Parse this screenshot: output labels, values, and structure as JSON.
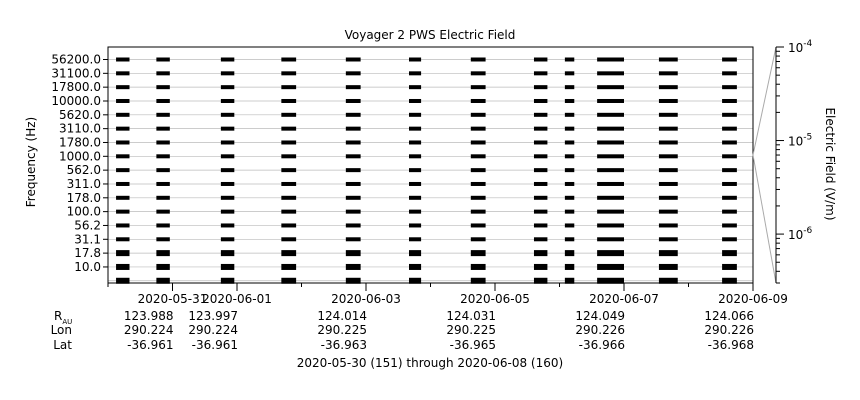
{
  "chart_data": {
    "type": "line",
    "title": "Voyager 2 PWS Electric Field",
    "ylabel": "Frequency (Hz)",
    "colorbar_label": "Electric Field (V/m)",
    "colorbar_ticks": [
      "10",
      "10",
      "10"
    ],
    "colorbar_exponents": [
      "-4",
      "-5",
      "-6"
    ],
    "colorbar_range": [
      3e-07,
      0.0001
    ],
    "colorbar_scale": "log",
    "frequency_channels": [
      "56200.0",
      "31100.0",
      "17800.0",
      "10000.0",
      "5620.0",
      "3110.0",
      "1780.0",
      "1000.0",
      "562.0",
      "311.0",
      "178.0",
      "100.0",
      "56.2",
      "31.1",
      "17.8",
      "10.0"
    ],
    "channel_count": 16,
    "grid": true,
    "x_ticks": [
      "2020-05-31",
      "2020-06-01",
      "2020-06-03",
      "2020-06-05",
      "2020-06-07",
      "2020-06-09"
    ],
    "xlim": [
      "2020-05-30",
      "2020-06-09"
    ],
    "x_caption": "2020-05-30 (151) through 2020-06-08 (160)",
    "ephemeris": {
      "row_labels": [
        "R",
        "Lon",
        "Lat"
      ],
      "r_subscript": "AU",
      "R": [
        "123.988",
        "123.997",
        "124.014",
        "124.031",
        "124.049",
        "124.066"
      ],
      "Lon": [
        "290.224",
        "290.224",
        "290.225",
        "290.225",
        "290.226",
        "290.226"
      ],
      "Lat": [
        "-36.961",
        "-36.961",
        "-36.963",
        "-36.965",
        "-36.966",
        "-36.968"
      ]
    },
    "data_blocks": [
      {
        "start": "2020-05-30T03:00",
        "end": "2020-05-30T08:00"
      },
      {
        "start": "2020-05-30T18:00",
        "end": "2020-05-30T23:00"
      },
      {
        "start": "2020-05-31T18:00",
        "end": "2020-05-31T23:00"
      },
      {
        "start": "2020-06-01T16:30",
        "end": "2020-06-01T22:00"
      },
      {
        "start": "2020-06-02T16:30",
        "end": "2020-06-02T22:00"
      },
      {
        "start": "2020-06-03T16:00",
        "end": "2020-06-03T20:30"
      },
      {
        "start": "2020-06-04T15:00",
        "end": "2020-06-04T20:30"
      },
      {
        "start": "2020-06-05T14:30",
        "end": "2020-06-05T19:30"
      },
      {
        "start": "2020-06-06T02:00",
        "end": "2020-06-06T05:30"
      },
      {
        "start": "2020-06-06T14:00",
        "end": "2020-06-07T00:00"
      },
      {
        "start": "2020-06-07T13:00",
        "end": "2020-06-07T20:00"
      },
      {
        "start": "2020-06-08T12:30",
        "end": "2020-06-08T18:00"
      }
    ]
  }
}
